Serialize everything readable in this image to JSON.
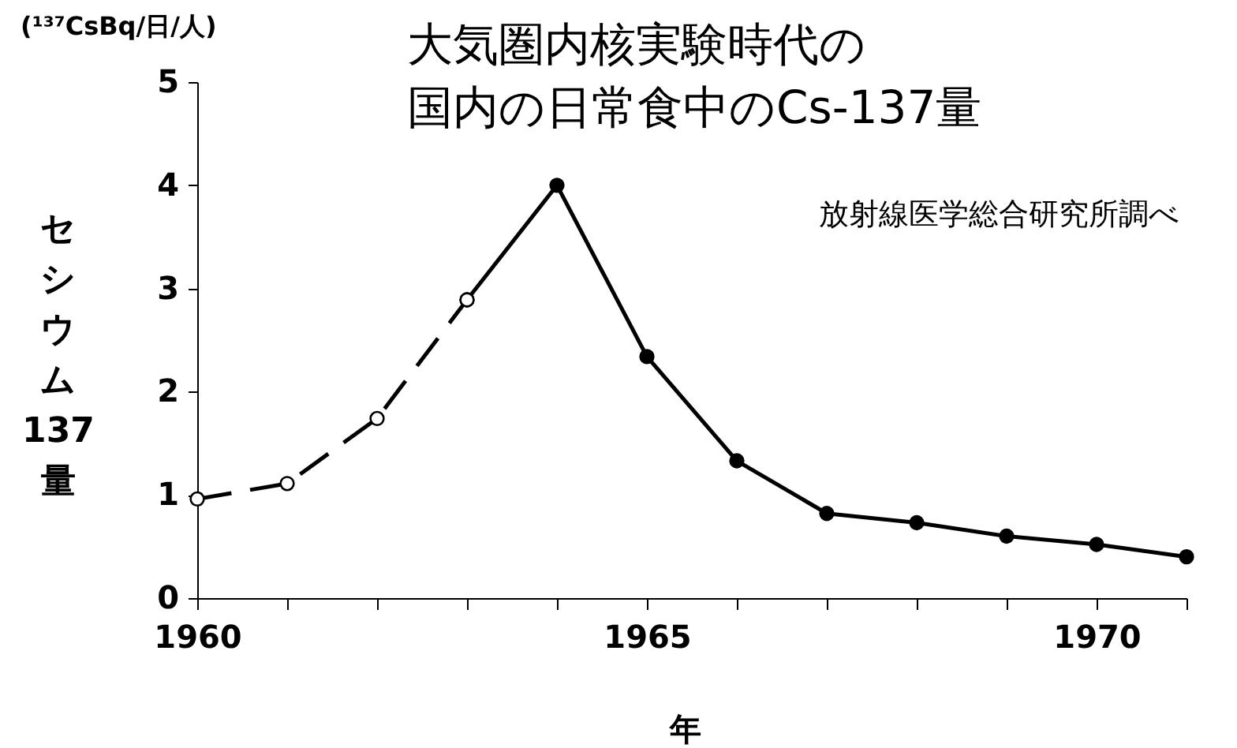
{
  "chart_data": {
    "type": "line",
    "title": "大気圏内核実験時代の国内の日常食中のCs-137量",
    "subtitle": "放射線医学総合研究所調べ",
    "xlabel": "年",
    "ylabel": "セシウム137量",
    "annotations": [
      "(¹³⁷CsBq/日/人)"
    ],
    "series": [
      {
        "color": "#000000",
        "line_style": "solid",
        "marker": "circle",
        "x": [
          1963,
          1964,
          1965,
          1966,
          1967,
          1968,
          1969,
          1970,
          1971
        ],
        "values": [
          2.89,
          4.0,
          2.34,
          1.33,
          0.82,
          0.73,
          0.6,
          0.52,
          0.4
        ]
      },
      {
        "color": "#000000",
        "line_style": "dashed",
        "marker": "circle",
        "x": [
          1960,
          1961,
          1962,
          1963
        ],
        "values": [
          0.96,
          1.11,
          1.74,
          2.89
        ]
      }
    ],
    "xlim": [
      1960,
      1971
    ],
    "ylim": [
      0,
      5
    ],
    "xticks": [
      1960,
      {
        "value": 1961,
        "label": null
      },
      {
        "value": 1962,
        "label": null
      },
      {
        "value": 1963,
        "label": null
      },
      {
        "value": 1964,
        "label": null
      },
      1965,
      {
        "value": 1966,
        "label": null
      },
      {
        "value": 1967,
        "label": null
      },
      {
        "value": 1968,
        "label": null
      },
      {
        "value": 1969,
        "label": null
      },
      1970,
      {
        "value": 1971,
        "label": null
      }
    ],
    "yticks": [
      0,
      1,
      2,
      3,
      4,
      5
    ],
    "grid": false
  }
}
